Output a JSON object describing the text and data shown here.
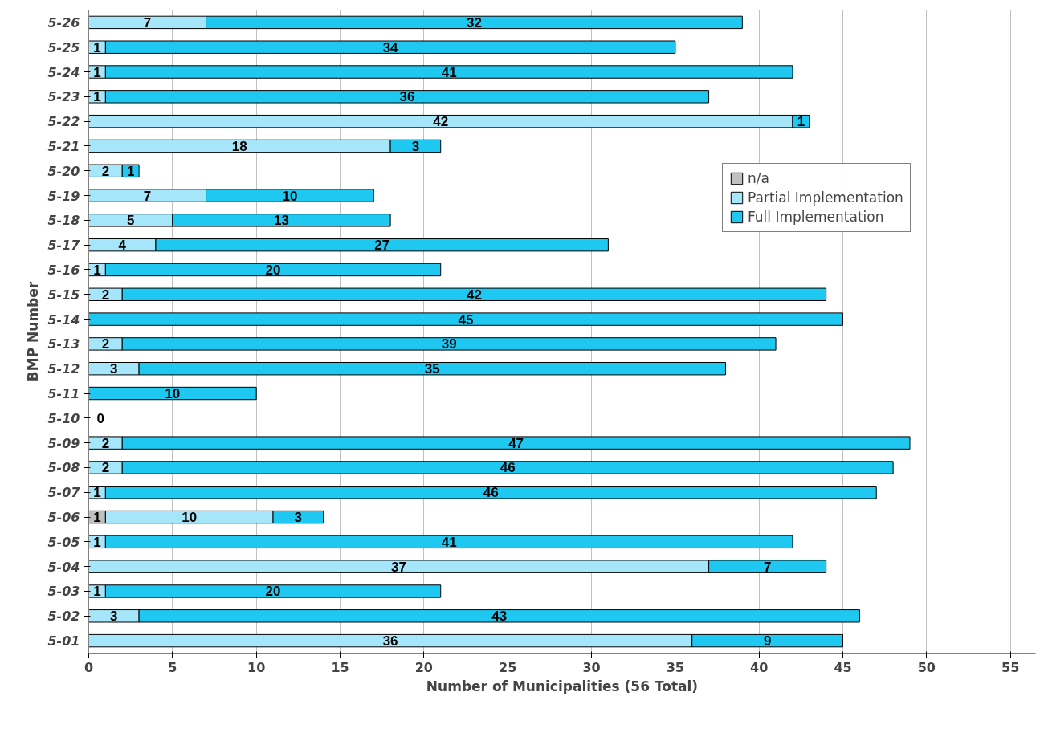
{
  "chart_data": {
    "type": "bar",
    "orientation": "horizontal",
    "stacked": true,
    "xlabel": "Number of Municipalities (56 Total)",
    "ylabel": "BMP Number",
    "categories": [
      "5-26",
      "5-25",
      "5-24",
      "5-23",
      "5-22",
      "5-21",
      "5-20",
      "5-19",
      "5-18",
      "5-17",
      "5-16",
      "5-15",
      "5-14",
      "5-13",
      "5-12",
      "5-11",
      "5-10",
      "5-09",
      "5-08",
      "5-07",
      "5-06",
      "5-05",
      "5-04",
      "5-03",
      "5-02",
      "5-01"
    ],
    "series": [
      {
        "name": "n/a",
        "color": "#c0c0c0",
        "values": [
          null,
          null,
          null,
          null,
          null,
          null,
          null,
          null,
          null,
          null,
          null,
          null,
          null,
          null,
          null,
          null,
          null,
          null,
          null,
          null,
          1,
          null,
          null,
          null,
          null,
          null
        ]
      },
      {
        "name": "Partial Implementation",
        "color": "#a6e6fa",
        "values": [
          7,
          1,
          1,
          1,
          42,
          18,
          2,
          7,
          5,
          4,
          1,
          2,
          null,
          2,
          3,
          null,
          null,
          2,
          2,
          1,
          10,
          1,
          37,
          1,
          3,
          36
        ]
      },
      {
        "name": "Full Implementation",
        "color": "#1ec8f0",
        "values": [
          32,
          34,
          41,
          36,
          1,
          3,
          1,
          10,
          13,
          27,
          20,
          42,
          45,
          39,
          35,
          10,
          0,
          47,
          46,
          46,
          3,
          41,
          7,
          20,
          43,
          9
        ]
      }
    ],
    "xlim": [
      0,
      56.5
    ],
    "xticks": [
      0,
      5,
      10,
      15,
      20,
      25,
      30,
      35,
      40,
      45,
      50,
      55
    ],
    "grid": "x",
    "legend": "right",
    "data_labels": true
  }
}
